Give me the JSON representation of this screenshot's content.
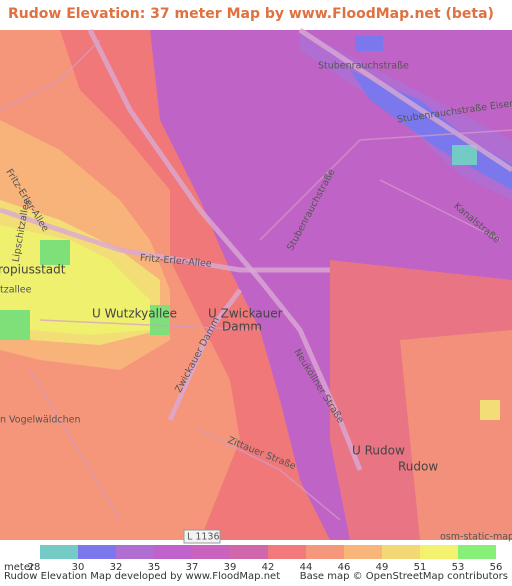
{
  "header": {
    "title": "Rudow Elevation: 37 meter Map by www.FloodMap.net (beta)"
  },
  "map": {
    "labels": [
      "Stubenrauchstraße",
      "Stubenrauchstraße Eisenhutw",
      "Kanalstraße",
      "Stubenrauchstraße",
      "Fritz-Erler-Allee",
      "Fritz-Erler-Allee",
      "Lipschitzallee",
      "ropiusstadt",
      "tzallee",
      "U Wutzkyallee",
      "U Zwickauer",
      "Damm",
      "Zwickauer Damm",
      "Neuköllner Straße",
      "n Vogelwäldchen",
      "Zittauer Straße",
      "U Rudow",
      "Rudow",
      "L 1136",
      "osm-static-maps"
    ]
  },
  "legend": {
    "unit": "meter",
    "ticks": [
      28,
      30,
      32,
      35,
      37,
      39,
      42,
      44,
      46,
      49,
      51,
      53,
      56
    ],
    "colors": [
      "#74cbc6",
      "#7b78ee",
      "#b06ed2",
      "#c062cc",
      "#c963bd",
      "#d067ac",
      "#f27a7c",
      "#f5977a",
      "#f8b57a",
      "#f4d875",
      "#f3f26e",
      "#86ef78"
    ]
  },
  "footer": {
    "left": "Rudow Elevation Map developed by www.FloodMap.net",
    "right": "Base map © OpenStreetMap contributors"
  }
}
